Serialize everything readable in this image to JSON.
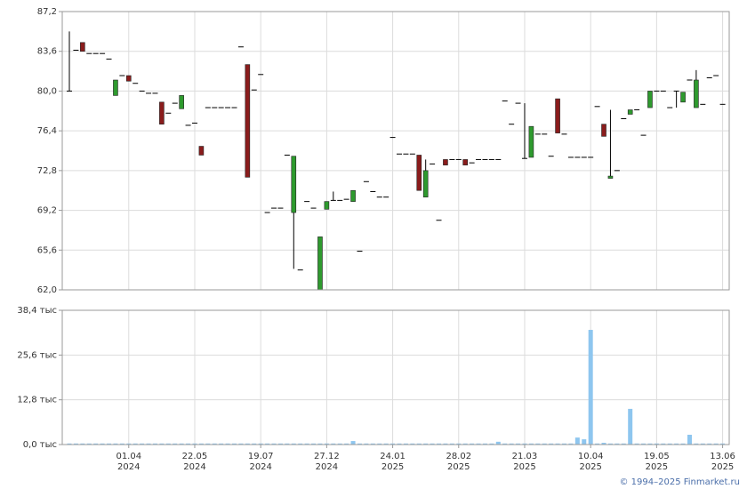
{
  "chart_data": [
    {
      "type": "candlestick",
      "up_color": "#2e9a2e",
      "down_color": "#8a1c1c",
      "flat_color": "#000000",
      "ylim": [
        62.0,
        87.2
      ],
      "yticks": [
        {
          "value": 62.0,
          "label": "62,0"
        },
        {
          "value": 65.6,
          "label": "65,6"
        },
        {
          "value": 69.2,
          "label": "69,2"
        },
        {
          "value": 72.8,
          "label": "72,8"
        },
        {
          "value": 76.4,
          "label": "76,4"
        },
        {
          "value": 80.0,
          "label": "80,0"
        },
        {
          "value": 83.6,
          "label": "83,6"
        },
        {
          "value": 87.2,
          "label": "87,2"
        }
      ],
      "grid": true,
      "open": [
        80.0,
        83.7,
        84.4,
        83.4,
        83.4,
        83.4,
        82.9,
        79.6,
        81.4,
        81.4,
        80.7,
        80.0,
        79.8,
        79.8,
        79.0,
        78.0,
        78.9,
        78.4,
        76.9,
        77.1,
        75.0,
        78.5,
        78.5,
        78.5,
        78.5,
        78.5,
        84.0,
        82.4,
        80.1,
        81.5,
        69.0,
        69.4,
        69.4,
        74.2,
        69.0,
        63.8,
        70.0,
        69.4,
        62.0,
        69.3,
        70.1,
        70.1,
        70.2,
        70.0,
        65.5,
        71.8,
        70.9,
        70.4,
        70.4,
        75.8,
        74.3,
        74.3,
        74.3,
        74.2,
        70.4,
        73.4,
        68.3,
        73.8,
        73.8,
        73.8,
        73.8,
        73.5,
        73.8,
        73.8,
        73.8,
        73.8,
        79.1,
        77.0,
        78.9,
        73.9,
        74.0,
        76.1,
        76.1,
        74.1,
        79.3,
        76.1,
        74.0,
        74.0,
        74.0,
        74.0,
        78.6,
        77.0,
        72.1,
        72.8,
        77.5,
        77.9,
        78.3,
        76.0,
        78.5,
        80.0,
        80.0,
        78.5,
        80.0,
        79.0,
        81.0,
        78.5,
        78.8,
        81.2,
        81.4,
        78.8
      ],
      "high": [
        85.4,
        83.7,
        84.4,
        83.4,
        83.4,
        83.4,
        82.9,
        81.0,
        81.4,
        81.4,
        80.7,
        80.0,
        79.8,
        79.8,
        79.0,
        78.0,
        78.9,
        79.6,
        76.9,
        77.1,
        75.0,
        78.5,
        78.5,
        78.5,
        78.5,
        78.5,
        84.0,
        82.4,
        80.1,
        81.5,
        69.0,
        69.4,
        69.4,
        74.2,
        74.1,
        63.8,
        70.0,
        69.4,
        66.8,
        70.0,
        70.9,
        70.1,
        70.2,
        71.0,
        65.5,
        71.8,
        70.9,
        70.4,
        70.4,
        75.8,
        74.3,
        74.3,
        74.3,
        74.2,
        73.8,
        73.4,
        68.3,
        73.8,
        73.8,
        73.8,
        73.8,
        73.5,
        73.8,
        73.8,
        73.8,
        73.8,
        79.1,
        77.0,
        78.9,
        78.9,
        76.8,
        76.1,
        76.1,
        74.1,
        79.3,
        76.1,
        74.0,
        74.0,
        74.0,
        74.0,
        78.6,
        77.0,
        78.3,
        72.8,
        77.5,
        78.3,
        78.3,
        76.0,
        80.0,
        80.0,
        80.0,
        78.5,
        80.0,
        79.9,
        81.0,
        81.9,
        78.8,
        81.2,
        81.4,
        78.8
      ],
      "low": [
        80.0,
        83.7,
        83.6,
        83.4,
        83.4,
        83.4,
        82.9,
        79.6,
        81.4,
        80.9,
        80.7,
        80.0,
        79.8,
        79.8,
        77.0,
        78.0,
        78.9,
        78.4,
        76.9,
        77.1,
        74.2,
        78.5,
        78.5,
        78.5,
        78.5,
        78.5,
        84.0,
        72.2,
        80.1,
        81.5,
        69.0,
        69.4,
        69.4,
        74.2,
        63.9,
        63.8,
        70.0,
        69.4,
        62.0,
        69.3,
        70.1,
        70.1,
        70.2,
        70.0,
        65.5,
        71.8,
        70.9,
        70.4,
        70.4,
        75.8,
        74.3,
        74.3,
        74.3,
        71.0,
        70.4,
        73.4,
        68.3,
        73.3,
        73.8,
        73.8,
        73.3,
        73.5,
        73.8,
        73.8,
        73.8,
        73.8,
        79.1,
        77.0,
        78.9,
        73.9,
        74.0,
        76.1,
        76.1,
        74.1,
        76.2,
        76.1,
        74.0,
        74.0,
        74.0,
        74.0,
        78.6,
        75.9,
        72.1,
        72.8,
        77.5,
        77.9,
        78.3,
        76.0,
        78.5,
        80.0,
        80.0,
        78.5,
        78.5,
        79.0,
        81.0,
        78.5,
        78.8,
        81.2,
        81.4,
        78.8
      ],
      "close": [
        80.0,
        83.7,
        83.6,
        83.4,
        83.4,
        83.4,
        82.9,
        81.0,
        81.4,
        80.9,
        80.7,
        80.0,
        79.8,
        79.8,
        77.0,
        78.0,
        78.9,
        79.6,
        76.9,
        77.1,
        74.2,
        78.5,
        78.5,
        78.5,
        78.5,
        78.5,
        84.0,
        72.2,
        80.1,
        81.5,
        69.0,
        69.4,
        69.4,
        74.2,
        74.1,
        63.8,
        70.0,
        69.4,
        66.8,
        70.0,
        70.1,
        70.1,
        70.2,
        71.0,
        65.5,
        71.8,
        70.9,
        70.4,
        70.4,
        75.8,
        74.3,
        74.3,
        74.3,
        71.0,
        72.8,
        73.4,
        68.3,
        73.3,
        73.8,
        73.8,
        73.3,
        73.5,
        73.8,
        73.8,
        73.8,
        73.8,
        79.1,
        77.0,
        78.9,
        73.9,
        76.8,
        76.1,
        76.1,
        74.1,
        76.2,
        76.1,
        74.0,
        74.0,
        74.0,
        74.0,
        78.6,
        75.9,
        72.3,
        72.8,
        77.5,
        78.3,
        78.3,
        76.0,
        80.0,
        80.0,
        80.0,
        78.5,
        80.0,
        79.9,
        81.0,
        81.0,
        78.8,
        81.2,
        81.4,
        78.8
      ]
    },
    {
      "type": "bar",
      "color": "#8ec6ef",
      "ylim": [
        0,
        38.4
      ],
      "yticks": [
        {
          "value": 0.0,
          "label": "0,0 тыс"
        },
        {
          "value": 12.8,
          "label": "12,8 тыс"
        },
        {
          "value": 25.6,
          "label": "25,6 тыс"
        },
        {
          "value": 38.4,
          "label": "38,4 тыс"
        }
      ],
      "grid": true,
      "categories": [
        null,
        null,
        null,
        null,
        null,
        null,
        null,
        null,
        null,
        [
          "01.04",
          "2024"
        ],
        null,
        null,
        null,
        null,
        null,
        null,
        null,
        null,
        null,
        [
          "22.05",
          "2024"
        ],
        null,
        null,
        null,
        null,
        null,
        null,
        null,
        null,
        null,
        [
          "19.07",
          "2024"
        ],
        null,
        null,
        null,
        null,
        null,
        null,
        null,
        null,
        null,
        [
          "27.12",
          "2024"
        ],
        null,
        null,
        null,
        null,
        null,
        null,
        null,
        null,
        null,
        [
          "24.01",
          "2025"
        ],
        null,
        null,
        null,
        null,
        null,
        null,
        null,
        null,
        null,
        [
          "28.02",
          "2025"
        ],
        null,
        null,
        null,
        null,
        null,
        null,
        null,
        null,
        null,
        [
          "21.03",
          "2025"
        ],
        null,
        null,
        null,
        null,
        null,
        null,
        null,
        null,
        null,
        [
          "10.04",
          "2025"
        ],
        null,
        null,
        null,
        null,
        null,
        null,
        null,
        null,
        null,
        [
          "19.05",
          "2025"
        ],
        null,
        null,
        null,
        null,
        null,
        null,
        null,
        null,
        null,
        [
          "13.06",
          "2025"
        ]
      ],
      "values": [
        0.3,
        0.3,
        0.3,
        0.3,
        0.3,
        0.3,
        0.3,
        0.3,
        0.3,
        0.3,
        0.3,
        0.3,
        0.3,
        0.3,
        0.3,
        0.3,
        0.3,
        0.3,
        0.3,
        0.3,
        0.3,
        0.3,
        0.3,
        0.3,
        0.3,
        0.3,
        0.3,
        0.3,
        0.3,
        0.3,
        0.3,
        0.3,
        0.3,
        0.3,
        0.3,
        0.3,
        0.3,
        0.3,
        0.3,
        0.3,
        0.3,
        0.3,
        0.3,
        1.0,
        0.3,
        0.3,
        0.3,
        0.3,
        0.3,
        0.3,
        0.3,
        0.3,
        0.3,
        0.3,
        0.3,
        0.3,
        0.3,
        0.3,
        0.3,
        0.3,
        0.3,
        0.3,
        0.3,
        0.3,
        0.3,
        0.8,
        0.3,
        0.3,
        0.3,
        0.3,
        0.3,
        0.3,
        0.3,
        0.3,
        0.3,
        0.3,
        0.3,
        2.0,
        1.5,
        32.8,
        0.3,
        0.5,
        0.3,
        0.3,
        0.3,
        10.2,
        0.3,
        0.3,
        0.3,
        0.3,
        0.3,
        0.3,
        0.3,
        0.3,
        2.8,
        0.3,
        0.3,
        0.3,
        0.3,
        0.3
      ]
    }
  ],
  "footer": "© 1994–2025 Finmarket.ru"
}
